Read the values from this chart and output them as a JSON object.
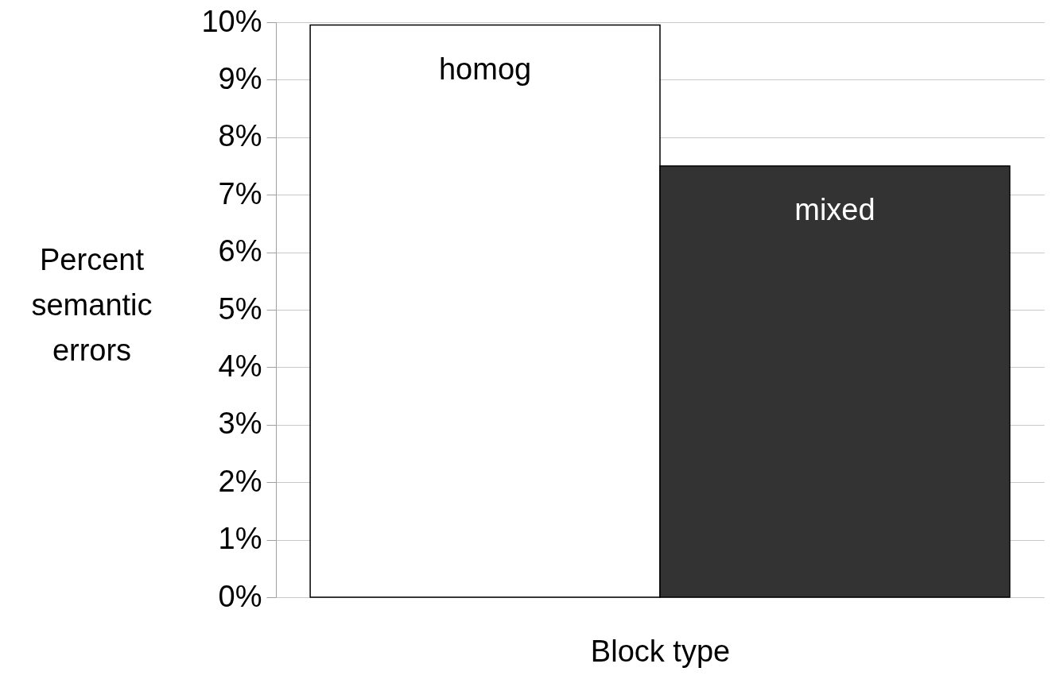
{
  "chart_data": {
    "type": "bar",
    "xlabel": "Block type",
    "ylabel": "Percent semantic errors",
    "categories": [
      "homog",
      "mixed"
    ],
    "values": [
      9.95,
      7.5
    ],
    "colors": [
      "#ffffff",
      "#333333"
    ],
    "ylim": [
      0,
      10
    ],
    "yticks": [
      {
        "value": 0,
        "label": "0%"
      },
      {
        "value": 1,
        "label": "1%"
      },
      {
        "value": 2,
        "label": "2%"
      },
      {
        "value": 3,
        "label": "3%"
      },
      {
        "value": 4,
        "label": "4%"
      },
      {
        "value": 5,
        "label": "5%"
      },
      {
        "value": 6,
        "label": "6%"
      },
      {
        "value": 7,
        "label": "7%"
      },
      {
        "value": 8,
        "label": "8%"
      },
      {
        "value": 9,
        "label": "9%"
      },
      {
        "value": 10,
        "label": "10%"
      }
    ],
    "grid": "y",
    "legend": false
  }
}
